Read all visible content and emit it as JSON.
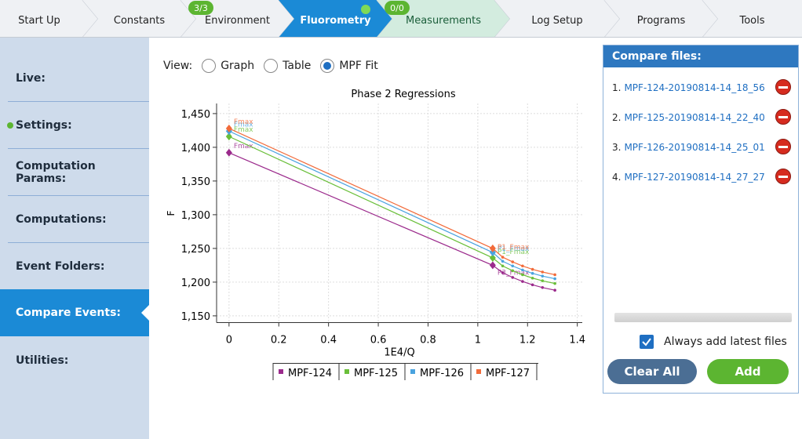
{
  "tabs": [
    {
      "label": "Start Up"
    },
    {
      "label": "Constants"
    },
    {
      "label": "Environment",
      "badge": "3/3"
    },
    {
      "label": "Fluorometry"
    },
    {
      "label": "Measurements",
      "badge": "0/0"
    },
    {
      "label": "Log Setup"
    },
    {
      "label": "Programs"
    },
    {
      "label": "Tools"
    }
  ],
  "sidebar": [
    "Live:",
    "Settings:",
    "Computation Params:",
    "Computations:",
    "Event Folders:",
    "Compare Events:",
    "Utilities:"
  ],
  "view": {
    "label": "View:",
    "options": [
      "Graph",
      "Table",
      "MPF Fit"
    ]
  },
  "chart_data": {
    "type": "line",
    "title": "Phase 2 Regressions",
    "x_label": "1E4/Q",
    "y_label": "F",
    "x": [
      0,
      1.06,
      1.1,
      1.14,
      1.18,
      1.22,
      1.26,
      1.31
    ],
    "series": [
      {
        "name": "MPF-124",
        "color": "#9b2a8c",
        "values": [
          1392,
          1225,
          1214,
          1207,
          1201,
          1196,
          1192,
          1188
        ],
        "labels": [
          "Fmax",
          "P3_Fmax",
          null,
          null,
          null,
          null,
          null,
          null
        ]
      },
      {
        "name": "MPF-125",
        "color": "#6abf3a",
        "values": [
          1416,
          1236,
          1224,
          1217,
          1211,
          1206,
          1202,
          1198
        ],
        "labels": [
          "Fmax",
          "P1_Fmax",
          null,
          null,
          null,
          null,
          null,
          null
        ]
      },
      {
        "name": "MPF-126",
        "color": "#4aa3df",
        "values": [
          1424,
          1244,
          1231,
          1224,
          1218,
          1213,
          1209,
          1205
        ],
        "labels": [
          "Fmax",
          "P1_Fmax",
          null,
          null,
          null,
          null,
          null,
          null
        ]
      },
      {
        "name": "MPF-127",
        "color": "#f26b3a",
        "values": [
          1428,
          1250,
          1237,
          1230,
          1224,
          1219,
          1215,
          1211
        ],
        "labels": [
          "Fmax",
          "P1_Fmax",
          null,
          null,
          null,
          null,
          null,
          null
        ]
      }
    ],
    "xlim": [
      -0.05,
      1.42
    ],
    "ylim": [
      1140,
      1465
    ],
    "xticks": [
      0,
      0.2,
      0.4,
      0.6,
      0.8,
      1,
      1.2,
      1.4
    ],
    "yticks": [
      {
        "value": 1150,
        "label": "1,150"
      },
      {
        "value": 1200,
        "label": "1,200"
      },
      {
        "value": 1250,
        "label": "1,250"
      },
      {
        "value": 1300,
        "label": "1,300"
      },
      {
        "value": 1350,
        "label": "1,350"
      },
      {
        "value": 1400,
        "label": "1,400"
      },
      {
        "value": 1450,
        "label": "1,450"
      }
    ],
    "grid": true
  },
  "compare": {
    "title": "Compare files:",
    "files": [
      {
        "number": "1.",
        "name": "MPF-124-20190814-14_18_56"
      },
      {
        "number": "2.",
        "name": "MPF-125-20190814-14_22_40"
      },
      {
        "number": "3.",
        "name": "MPF-126-20190814-14_25_01"
      },
      {
        "number": "4.",
        "name": "MPF-127-20190814-14_27_27"
      }
    ],
    "checkbox": "Always add latest files",
    "buttons": [
      "Clear All",
      "Add"
    ]
  }
}
